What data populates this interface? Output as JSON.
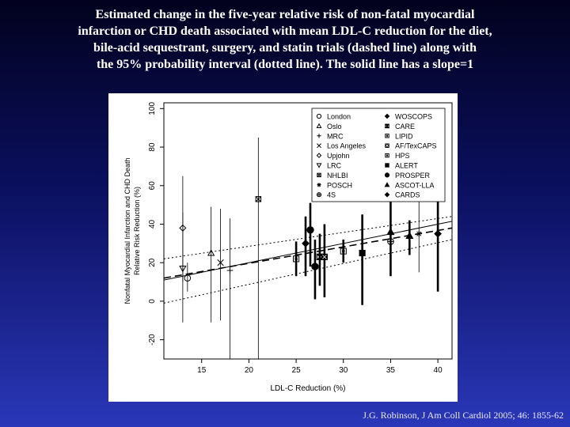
{
  "slide": {
    "title_lines": [
      "Estimated change in the five-year relative risk of non-fatal myocardial",
      "infarction or CHD death associated with mean LDL-C reduction for the diet,",
      "bile-acid sequestrant, surgery, and statin trials (dashed line) along with",
      "the 95% probability interval (dotted line). The solid line has a slope=1"
    ],
    "citation": "J.G. Robinson, J Am Coll Cardiol 2005; 46: 1855-62"
  },
  "chart_data": {
    "type": "scatter",
    "xlabel": "LDL-C Reduction (%)",
    "ylabel_lines": [
      "Nonfatal Myocardial Infarction and CHD Death",
      "Relative Risk Reduction (%)"
    ],
    "xlim": [
      11,
      41.5
    ],
    "ylim": [
      -30,
      103
    ],
    "xticks": [
      15,
      20,
      25,
      30,
      35,
      40
    ],
    "yticks": [
      -20,
      0,
      20,
      40,
      60,
      80,
      100
    ],
    "grid": false,
    "legend_position": "top-right",
    "lines": [
      {
        "name": "solid",
        "style": "solid",
        "x": [
          11,
          41.5
        ],
        "y": [
          11,
          41.5
        ]
      },
      {
        "name": "dashed",
        "style": "dashed",
        "x": [
          11,
          41.5
        ],
        "y": [
          12,
          38
        ]
      },
      {
        "name": "dotted-upper",
        "style": "dotted",
        "x": [
          11,
          41.5
        ],
        "y": [
          22,
          44
        ]
      },
      {
        "name": "dotted-lower",
        "style": "dotted",
        "x": [
          11,
          41.5
        ],
        "y": [
          -1,
          32
        ]
      }
    ],
    "series": [
      {
        "name": "London",
        "marker": "circle-open",
        "x": 13.5,
        "y": 12,
        "lo": 5,
        "hi": 20
      },
      {
        "name": "Oslo",
        "marker": "triangle-open",
        "x": 16,
        "y": 25,
        "lo": -11,
        "hi": 49
      },
      {
        "name": "MRC",
        "marker": "plus",
        "x": 18,
        "y": 16,
        "lo": -30,
        "hi": 43
      },
      {
        "name": "Los Angeles",
        "marker": "cross",
        "x": 17,
        "y": 20,
        "lo": -10,
        "hi": 48
      },
      {
        "name": "Upjohn",
        "marker": "diamond-open",
        "x": 13,
        "y": 38,
        "lo": 10,
        "hi": 65
      },
      {
        "name": "LRC",
        "marker": "triangle-down-open",
        "x": 13,
        "y": 17,
        "lo": -11,
        "hi": 46
      },
      {
        "name": "NHLBI",
        "marker": "square-x",
        "x": 21,
        "y": 53,
        "lo": -30,
        "hi": 85
      },
      {
        "name": "POSCH",
        "marker": "asterisk",
        "x": 38,
        "y": 35,
        "lo": 15,
        "hi": 52
      },
      {
        "name": "4S",
        "marker": "circle-plus",
        "x": 35,
        "y": 31,
        "lo": 24,
        "hi": 37
      },
      {
        "name": "WOSCOPS",
        "marker": "diamond-filled",
        "x": 26,
        "y": 30,
        "lo": 13,
        "hi": 44
      },
      {
        "name": "CARE",
        "marker": "square-hourglass",
        "x": 27.5,
        "y": 23,
        "lo": 8,
        "hi": 35
      },
      {
        "name": "LIPID",
        "marker": "square-dot",
        "x": 25,
        "y": 22,
        "lo": 13,
        "hi": 31
      },
      {
        "name": "AF/TexCAPS",
        "marker": "square-x-filled",
        "x": 28,
        "y": 23,
        "lo": 2,
        "hi": 40
      },
      {
        "name": "HPS",
        "marker": "square-dot",
        "x": 30,
        "y": 26,
        "lo": 20,
        "hi": 32
      },
      {
        "name": "ALERT",
        "marker": "square-filled",
        "x": 32,
        "y": 25,
        "lo": -2,
        "hi": 45
      },
      {
        "name": "PROSPER",
        "marker": "circle-filled",
        "x": 27,
        "y": 18,
        "lo": 1,
        "hi": 32
      },
      {
        "name": "ASCOT-LLA",
        "marker": "triangle-filled",
        "x": 35,
        "y": 36,
        "lo": 13,
        "hi": 53
      },
      {
        "name": "CARDS",
        "marker": "diamond-filled",
        "x": 40,
        "y": 35,
        "lo": 5,
        "hi": 58
      },
      {
        "name": "",
        "marker": "circle-filled",
        "x": 26.5,
        "y": 37,
        "lo": 18,
        "hi": 51
      },
      {
        "name": "",
        "marker": "triangle-filled",
        "x": 37,
        "y": 34,
        "lo": 24,
        "hi": 42
      }
    ],
    "legend": {
      "col1": [
        "London",
        "Oslo",
        "MRC",
        "Los Angeles",
        "Upjohn",
        "LRC",
        "NHLBI",
        "POSCH",
        "4S"
      ],
      "col2": [
        "WOSCOPS",
        "CARE",
        "LIPID",
        "AF/TexCAPS",
        "HPS",
        "ALERT",
        "PROSPER",
        "ASCOT-LLA",
        "CARDS"
      ],
      "col1_markers": [
        "circle-open",
        "triangle-open",
        "plus",
        "cross",
        "diamond-open",
        "triangle-down-open",
        "square-x",
        "asterisk",
        "circle-plus"
      ],
      "col2_markers": [
        "diamond-filled",
        "square-hourglass",
        "square-dot",
        "square-x-filled",
        "square-dot",
        "square-filled",
        "circle-filled",
        "triangle-filled",
        "diamond-filled"
      ]
    }
  }
}
